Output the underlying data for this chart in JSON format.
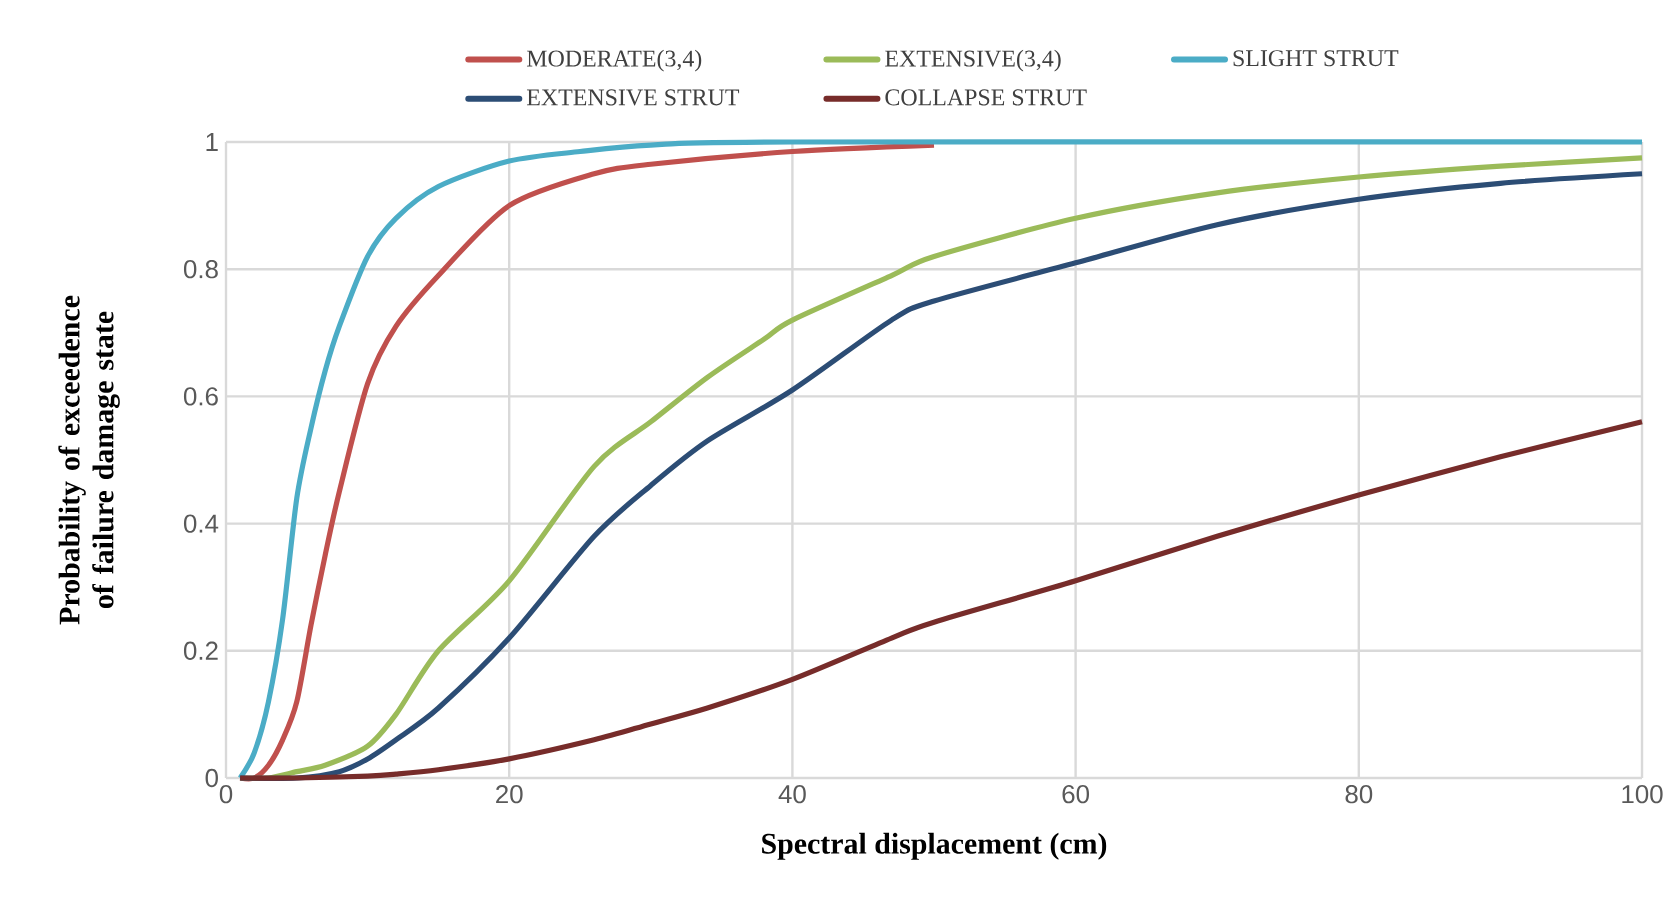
{
  "chart_data": {
    "type": "line",
    "xlabel": "Spectral displacement (cm)",
    "ylabel": "Probability of exceedence of failure damage state",
    "xlim": [
      0,
      100
    ],
    "ylim": [
      0,
      1
    ],
    "xticks": [
      0,
      20,
      40,
      60,
      80,
      100
    ],
    "yticks": [
      0,
      0.2,
      0.4,
      0.6,
      0.8,
      1
    ],
    "grid": true,
    "legend": "top",
    "marker": "none",
    "line_style": "solid",
    "series": [
      {
        "name": "MODERATE(3,4)",
        "color": "#c0504d",
        "x": [
          1,
          2,
          3,
          4,
          5,
          6,
          7,
          8,
          10,
          12,
          15,
          20,
          26,
          30,
          40,
          50
        ],
        "values": [
          0,
          0,
          0.02,
          0.06,
          0.12,
          0.24,
          0.35,
          0.45,
          0.62,
          0.71,
          0.79,
          0.9,
          0.95,
          0.965,
          0.985,
          0.995
        ]
      },
      {
        "name": "EXTENSIVE(3,4)",
        "color": "#9bbb59",
        "x": [
          1,
          3,
          5,
          7,
          10,
          12,
          15,
          20,
          26,
          30,
          34,
          38,
          40,
          47,
          50,
          60,
          70,
          80,
          90,
          100
        ],
        "values": [
          0,
          0,
          0.01,
          0.02,
          0.05,
          0.1,
          0.2,
          0.31,
          0.49,
          0.56,
          0.63,
          0.69,
          0.72,
          0.79,
          0.82,
          0.88,
          0.92,
          0.945,
          0.962,
          0.975
        ]
      },
      {
        "name": "SLIGHT STRUT",
        "color": "#4bacc6",
        "x": [
          1,
          2,
          3,
          4,
          5,
          6,
          7,
          8,
          10,
          12,
          15,
          20,
          25,
          30,
          40,
          100
        ],
        "values": [
          0,
          0.04,
          0.12,
          0.25,
          0.44,
          0.55,
          0.64,
          0.71,
          0.82,
          0.88,
          0.93,
          0.97,
          0.985,
          0.995,
          1,
          1
        ]
      },
      {
        "name": "EXTENSIVE STRUT",
        "color": "#2c4d75",
        "x": [
          1,
          5,
          8,
          10,
          12,
          15,
          20,
          26,
          30,
          34,
          40,
          47,
          50,
          60,
          70,
          80,
          90,
          100
        ],
        "values": [
          0,
          0,
          0.01,
          0.03,
          0.06,
          0.11,
          0.22,
          0.38,
          0.46,
          0.53,
          0.61,
          0.72,
          0.75,
          0.81,
          0.87,
          0.91,
          0.935,
          0.95
        ]
      },
      {
        "name": "COLLAPSE STRUT",
        "color": "#772c2a",
        "x": [
          1,
          5,
          10,
          12,
          15,
          20,
          26,
          30,
          34,
          40,
          47,
          50,
          60,
          70,
          80,
          90,
          100
        ],
        "values": [
          0,
          0,
          0.003,
          0.006,
          0.013,
          0.03,
          0.06,
          0.085,
          0.11,
          0.155,
          0.22,
          0.245,
          0.31,
          0.38,
          0.445,
          0.505,
          0.56
        ]
      }
    ]
  }
}
